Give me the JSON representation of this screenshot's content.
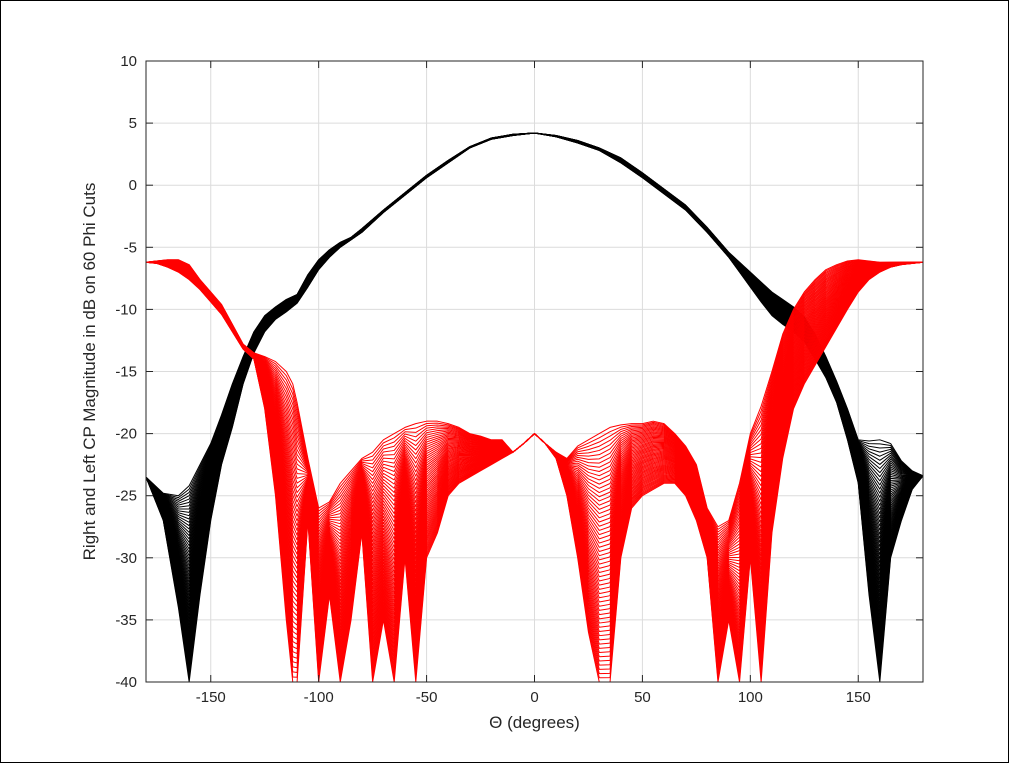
{
  "chart_data": {
    "type": "line",
    "title": "",
    "xlabel": "Θ (degrees)",
    "ylabel": "Right and Left CP Magnitude in dB on 60 Phi Cuts",
    "xlim": [
      -180,
      180
    ],
    "ylim": [
      -40,
      10
    ],
    "xticks": [
      -150,
      -100,
      -50,
      0,
      50,
      100,
      150
    ],
    "yticks": [
      10,
      5,
      0,
      -5,
      -10,
      -15,
      -20,
      -25,
      -30,
      -35,
      -40
    ],
    "grid": true,
    "legend": "none",
    "series": [
      {
        "color": "#000000",
        "cut_count": 60,
        "x": [
          -180,
          -172,
          -165,
          -160,
          -155,
          -150,
          -145,
          -140,
          -135,
          -130,
          -125,
          -120,
          -115,
          -110,
          -105,
          -100,
          -95,
          -90,
          -85,
          -80,
          -70,
          -60,
          -50,
          -40,
          -30,
          -20,
          -10,
          0,
          10,
          20,
          30,
          40,
          50,
          60,
          70,
          80,
          85,
          90,
          95,
          100,
          105,
          110,
          115,
          120,
          125,
          130,
          135,
          140,
          145,
          150,
          155,
          160,
          165,
          170,
          175,
          180
        ],
        "y_upper": [
          -23.5,
          -24.8,
          -25,
          -24.2,
          -22.5,
          -20.8,
          -18.5,
          -16,
          -13.8,
          -11.8,
          -10.5,
          -9.8,
          -9.2,
          -8.8,
          -7.2,
          -6,
          -5.2,
          -4.6,
          -4.2,
          -3.5,
          -2,
          -0.6,
          0.8,
          2,
          3.1,
          3.8,
          4.1,
          4.2,
          4.0,
          3.6,
          3.0,
          2.2,
          1.0,
          -0.3,
          -1.6,
          -3.4,
          -4.4,
          -5.4,
          -6.2,
          -7.0,
          -7.8,
          -8.6,
          -9.2,
          -9.8,
          -10.6,
          -12,
          -13.8,
          -15.8,
          -18,
          -20.5,
          -20.6,
          -20.5,
          -20.8,
          -22.2,
          -23,
          -23.4
        ],
        "y_lower": [
          -23.5,
          -27,
          -34,
          -40,
          -33,
          -27,
          -22.5,
          -19.5,
          -16,
          -13.5,
          -11.8,
          -10.8,
          -10.2,
          -9.5,
          -8.2,
          -6.8,
          -5.8,
          -5.0,
          -4.4,
          -3.8,
          -2.2,
          -0.8,
          0.6,
          1.8,
          3.0,
          3.7,
          4.0,
          4.2,
          3.9,
          3.4,
          2.8,
          1.8,
          0.6,
          -0.7,
          -2.0,
          -3.8,
          -4.8,
          -5.8,
          -7.0,
          -8.2,
          -9.4,
          -10.5,
          -11.2,
          -11.8,
          -12.6,
          -14,
          -15.5,
          -17.5,
          -20.5,
          -24,
          -33,
          -40,
          -30,
          -27,
          -24.5,
          -23.4
        ]
      },
      {
        "color": "#ff0000",
        "cut_count": 60,
        "x": [
          -180,
          -175,
          -170,
          -165,
          -160,
          -155,
          -150,
          -145,
          -140,
          -135,
          -130,
          -125,
          -120,
          -115,
          -112,
          -110,
          -105,
          -100,
          -95,
          -90,
          -85,
          -80,
          -75,
          -70,
          -65,
          -60,
          -55,
          -50,
          -45,
          -40,
          -35,
          -30,
          -25,
          -20,
          -15,
          -10,
          -5,
          0,
          5,
          10,
          15,
          20,
          25,
          30,
          35,
          40,
          45,
          50,
          55,
          60,
          65,
          70,
          75,
          80,
          85,
          90,
          95,
          100,
          105,
          110,
          115,
          120,
          125,
          130,
          135,
          140,
          145,
          150,
          155,
          160,
          165,
          170,
          175,
          180
        ],
        "y_upper": [
          -6.2,
          -6.1,
          -6.0,
          -6.0,
          -6.4,
          -7.6,
          -8.6,
          -9.6,
          -11.2,
          -12.8,
          -13.5,
          -13.8,
          -14.2,
          -15,
          -16,
          -17.5,
          -22,
          -26,
          -25.5,
          -24,
          -23,
          -22,
          -21.5,
          -20.5,
          -20,
          -19.5,
          -19.2,
          -19,
          -19,
          -19.2,
          -19.5,
          -20,
          -20.2,
          -20.5,
          -20.5,
          -21.5,
          -20.8,
          -20,
          -20.8,
          -21.5,
          -22,
          -21,
          -20.5,
          -20,
          -19.5,
          -19.3,
          -19.2,
          -19.2,
          -19,
          -19.2,
          -20,
          -21,
          -22.5,
          -26,
          -27.5,
          -27,
          -24,
          -20,
          -17.8,
          -15,
          -12,
          -10,
          -8.6,
          -7.6,
          -6.8,
          -6.4,
          -6.1,
          -6.0,
          -6.1,
          -6.2,
          -6.2,
          -6.2,
          -6.2,
          -6.2
        ],
        "y_lower": [
          -6.2,
          -6.3,
          -6.6,
          -7.0,
          -7.6,
          -8.4,
          -9.4,
          -10.4,
          -11.8,
          -13.2,
          -14.0,
          -18,
          -25,
          -35,
          -40,
          -40,
          -27,
          -40,
          -33,
          -40,
          -35,
          -28,
          -40,
          -35,
          -40,
          -30,
          -40,
          -30,
          -28,
          -25,
          -24,
          -23.5,
          -23,
          -22.5,
          -22,
          -21.5,
          -20.8,
          -20,
          -20.8,
          -22,
          -25,
          -30,
          -36,
          -40,
          -40,
          -30,
          -26,
          -25,
          -24.5,
          -24,
          -24,
          -25,
          -27,
          -30,
          -40,
          -35,
          -40,
          -30,
          -40,
          -28,
          -22,
          -18,
          -16,
          -14.5,
          -13,
          -11.5,
          -10,
          -8.6,
          -7.6,
          -7.0,
          -6.6,
          -6.4,
          -6.3,
          -6.2
        ]
      }
    ]
  }
}
